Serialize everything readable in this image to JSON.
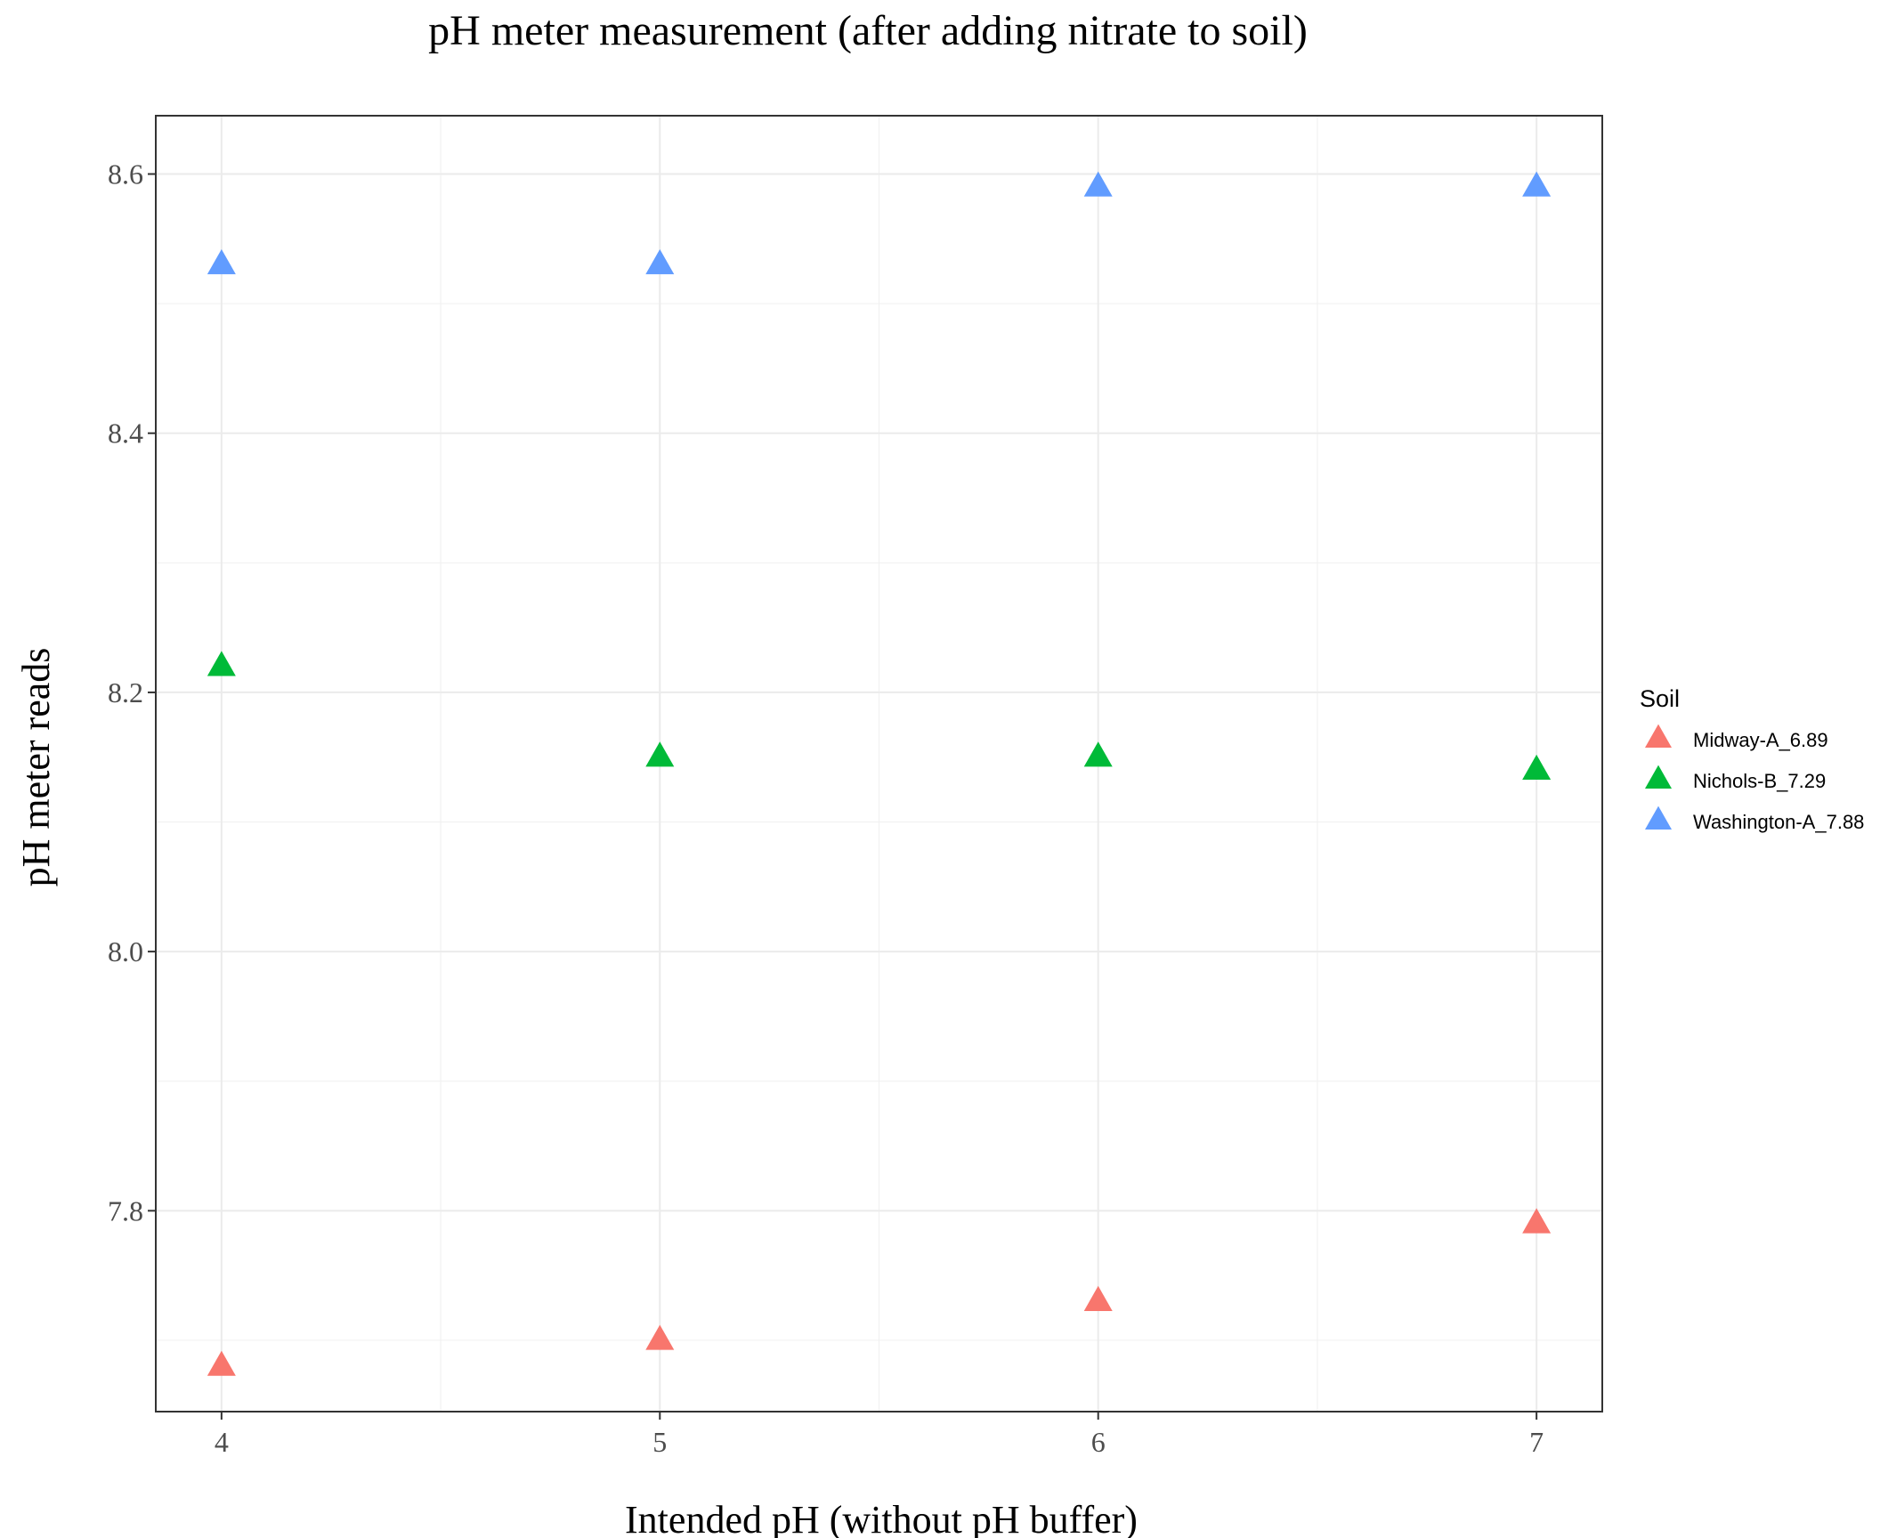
{
  "chart_data": {
    "type": "scatter",
    "title": "pH meter measurement (after adding nitrate to soil)",
    "xlabel": "Intended pH (without pH buffer)",
    "ylabel": "pH meter reads",
    "xlim": [
      3.85,
      7.15
    ],
    "ylim": [
      7.645,
      8.645
    ],
    "x_ticks": [
      4,
      5,
      6,
      7
    ],
    "x_tick_labels": [
      "4",
      "5",
      "6",
      "7"
    ],
    "y_ticks": [
      7.8,
      8.0,
      8.2,
      8.4,
      8.6
    ],
    "y_tick_labels": [
      "7.8",
      "8.0",
      "8.2",
      "8.4",
      "8.6"
    ],
    "grid": true,
    "marker": "triangle",
    "legend": {
      "title": "Soil",
      "placement": "right"
    },
    "series": [
      {
        "name": "Midway-A_6.89",
        "color": "#F8766D",
        "x": [
          4,
          5,
          6,
          7
        ],
        "y": [
          7.68,
          7.7,
          7.73,
          7.79
        ]
      },
      {
        "name": "Nichols-B_7.29",
        "color": "#00BA38",
        "x": [
          4,
          5,
          6,
          7
        ],
        "y": [
          8.22,
          8.15,
          8.15,
          8.14
        ]
      },
      {
        "name": "Washington-A_7.88",
        "color": "#619CFF",
        "x": [
          4,
          5,
          6,
          7
        ],
        "y": [
          8.53,
          8.53,
          8.59,
          8.59
        ]
      }
    ]
  }
}
